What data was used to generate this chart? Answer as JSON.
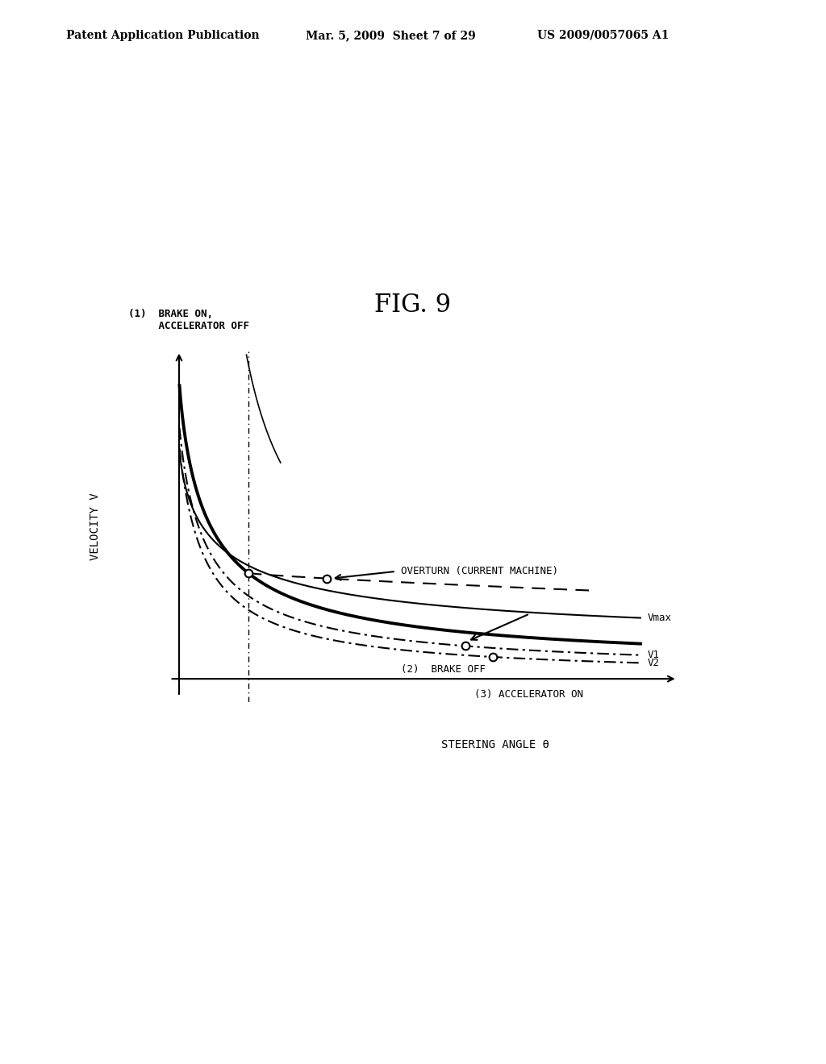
{
  "title": "FIG. 9",
  "header_left": "Patent Application Publication",
  "header_mid": "Mar. 5, 2009  Sheet 7 of 29",
  "header_right": "US 2009/0057065 A1",
  "ylabel": "VELOCITY V",
  "xlabel": "STEERING ANGLE θ",
  "label_brake_on": "(1)  BRAKE ON,\n     ACCELERATOR OFF",
  "label_overturn": "OVERTURN (CURRENT MACHINE)",
  "label_vmax": "Vmax",
  "label_v1": "V1",
  "label_v2": "V2",
  "label_brake_off": "(2)  BRAKE OFF",
  "label_accel_on": "(3) ACCELERATOR ON",
  "bg_color": "#ffffff",
  "line_color": "#000000"
}
